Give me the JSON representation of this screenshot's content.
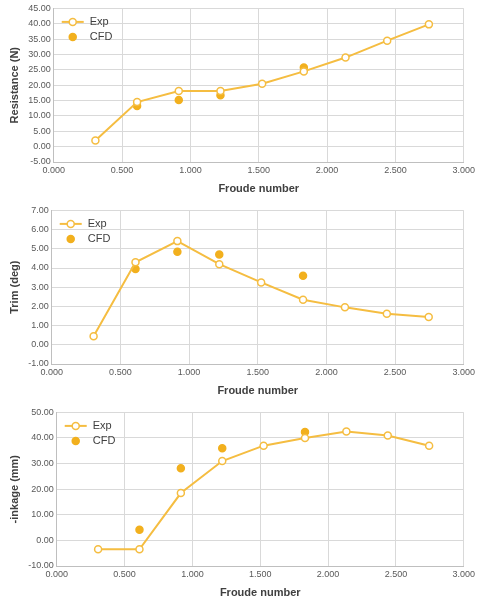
{
  "chart_data": [
    {
      "type": "line",
      "ylabel": "Resistance (N)",
      "xlabel": "Froude number",
      "xlim": [
        0,
        3
      ],
      "xticks": [
        {
          "value": 0,
          "label": "0.000"
        },
        {
          "value": 0.5,
          "label": "0.500"
        },
        {
          "value": 1,
          "label": "1.000"
        },
        {
          "value": 1.5,
          "label": "1.500"
        },
        {
          "value": 2,
          "label": "2.000"
        },
        {
          "value": 2.5,
          "label": "2.500"
        },
        {
          "value": 3,
          "label": "3.000"
        }
      ],
      "ylim": [
        -5,
        45
      ],
      "yticks": [
        {
          "value": -5,
          "label": "-5.00"
        },
        {
          "value": 0,
          "label": "0.00"
        },
        {
          "value": 5,
          "label": "5.00"
        },
        {
          "value": 10,
          "label": "10.00"
        },
        {
          "value": 15,
          "label": "15.00"
        },
        {
          "value": 20,
          "label": "20.00"
        },
        {
          "value": 25,
          "label": "25.00"
        },
        {
          "value": 30,
          "label": "30.00"
        },
        {
          "value": 35,
          "label": "35.00"
        },
        {
          "value": 40,
          "label": "40.00"
        },
        {
          "value": 45,
          "label": "45.00"
        }
      ],
      "grid": true,
      "legend": "upper left",
      "series": [
        {
          "name": "Exp",
          "type": "line",
          "marker": "circle-open",
          "line_style": "solid",
          "color": "#f5bd41",
          "x": [
            0.305,
            0.61,
            0.915,
            1.22,
            1.525,
            1.83,
            2.135,
            2.44,
            2.745
          ],
          "values": [
            2.0,
            14.5,
            18.1,
            18.1,
            20.5,
            24.5,
            29.0,
            34.5,
            39.8
          ]
        },
        {
          "name": "CFD",
          "type": "scatter",
          "marker": "circle",
          "color": "#f2b01e",
          "x": [
            0.61,
            0.915,
            1.22,
            1.83
          ],
          "values": [
            13.2,
            15.2,
            16.7,
            25.8
          ]
        }
      ]
    },
    {
      "type": "line",
      "ylabel": "Trim (deg)",
      "xlabel": "Froude number",
      "xlim": [
        0,
        3
      ],
      "xticks": [
        {
          "value": 0,
          "label": "0.000"
        },
        {
          "value": 0.5,
          "label": "0.500"
        },
        {
          "value": 1,
          "label": "1.000"
        },
        {
          "value": 1.5,
          "label": "1.500"
        },
        {
          "value": 2,
          "label": "2.000"
        },
        {
          "value": 2.5,
          "label": "2.500"
        },
        {
          "value": 3,
          "label": "3.000"
        }
      ],
      "ylim": [
        -1,
        7
      ],
      "yticks": [
        {
          "value": -1,
          "label": "-1.00"
        },
        {
          "value": 0,
          "label": "0.00"
        },
        {
          "value": 1,
          "label": "1.00"
        },
        {
          "value": 2,
          "label": "2.00"
        },
        {
          "value": 3,
          "label": "3.00"
        },
        {
          "value": 4,
          "label": "4.00"
        },
        {
          "value": 5,
          "label": "5.00"
        },
        {
          "value": 6,
          "label": "6.00"
        },
        {
          "value": 7,
          "label": "7.00"
        }
      ],
      "grid": true,
      "legend": "upper left",
      "series": [
        {
          "name": "Exp",
          "type": "line",
          "marker": "circle-open",
          "line_style": "solid",
          "color": "#f5bd41",
          "x": [
            0.305,
            0.61,
            0.915,
            1.22,
            1.525,
            1.83,
            2.135,
            2.44,
            2.745
          ],
          "values": [
            0.45,
            4.3,
            5.4,
            4.2,
            3.25,
            2.35,
            1.95,
            1.62,
            1.45
          ]
        },
        {
          "name": "CFD",
          "type": "scatter",
          "marker": "circle",
          "color": "#f2b01e",
          "x": [
            0.61,
            0.915,
            1.22,
            1.83
          ],
          "values": [
            3.95,
            4.85,
            4.7,
            3.6
          ]
        }
      ]
    },
    {
      "type": "line",
      "ylabel": "-inkage (mm)",
      "xlabel": "Froude number",
      "xlim": [
        0,
        3
      ],
      "xticks": [
        {
          "value": 0,
          "label": "0.000"
        },
        {
          "value": 0.5,
          "label": "0.500"
        },
        {
          "value": 1,
          "label": "1.000"
        },
        {
          "value": 1.5,
          "label": "1.500"
        },
        {
          "value": 2,
          "label": "2.000"
        },
        {
          "value": 2.5,
          "label": "2.500"
        },
        {
          "value": 3,
          "label": "3.000"
        }
      ],
      "ylim": [
        -10,
        50
      ],
      "yticks": [
        {
          "value": -10,
          "label": "-10.00"
        },
        {
          "value": 0,
          "label": "0.00"
        },
        {
          "value": 10,
          "label": "10.00"
        },
        {
          "value": 20,
          "label": "20.00"
        },
        {
          "value": 30,
          "label": "30.00"
        },
        {
          "value": 40,
          "label": "40.00"
        },
        {
          "value": 50,
          "label": "50.00"
        }
      ],
      "grid": true,
      "legend": "upper left",
      "series": [
        {
          "name": "Exp",
          "type": "line",
          "marker": "circle-open",
          "line_style": "solid",
          "color": "#f5bd41",
          "x": [
            0.305,
            0.61,
            0.915,
            1.22,
            1.525,
            1.83,
            2.135,
            2.44,
            2.745
          ],
          "values": [
            -3.5,
            -3.5,
            18.5,
            31.0,
            37.0,
            40.0,
            42.5,
            41.0,
            37.0
          ]
        },
        {
          "name": "CFD",
          "type": "scatter",
          "marker": "circle",
          "color": "#f2b01e",
          "x": [
            0.61,
            0.915,
            1.22,
            1.83
          ],
          "values": [
            4.2,
            28.2,
            36.0,
            42.3
          ]
        }
      ]
    }
  ]
}
